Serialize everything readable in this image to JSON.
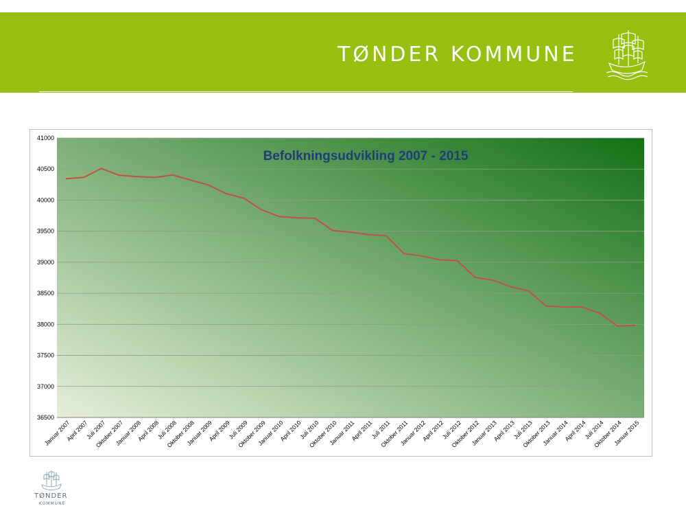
{
  "header": {
    "brand": "TØNDER KOMMUNE"
  },
  "footer": {
    "brand": "TØNDER",
    "sub": "KOMMUNE"
  },
  "colors": {
    "banner": "#97bf0f",
    "line": "#c0504d",
    "title": "#1f3d7a",
    "gradient_light": "#e6efd9",
    "gradient_dark": "#137015"
  },
  "chart_data": {
    "type": "line",
    "title": "Befolkningsudvikling 2007 - 2015",
    "xlabel": "",
    "ylabel": "",
    "ylim": [
      36500,
      41000
    ],
    "yticks": [
      36500,
      37000,
      37500,
      38000,
      38500,
      39000,
      39500,
      40000,
      40500,
      41000
    ],
    "grid": true,
    "categories": [
      "Januar 2007",
      "April 2007",
      "Juli 2007",
      "Oktober 2007",
      "Januar 2008",
      "April 2008",
      "Juli 2008",
      "Oktober 2008",
      "Januar 2009",
      "April 2009",
      "Juli 2009",
      "Oktober 2009",
      "Januar 2010",
      "April 2010",
      "Juli 2010",
      "Oktober 2010",
      "Januar 2011",
      "April 2011",
      "Juli 2011",
      "Oktober 2011",
      "Januar 2012",
      "April 2012",
      "Juli 2012",
      "Oktober 2012",
      "Januar 2013",
      "April 2013",
      "Juli 2013",
      "Oktober 2013",
      "Januar 2014",
      "April 2014",
      "Juli 2014",
      "Oktober 2014",
      "Januar 2015"
    ],
    "series": [
      {
        "values": [
          40345,
          40365,
          40510,
          40400,
          40380,
          40365,
          40405,
          40325,
          40245,
          40105,
          40030,
          39845,
          39735,
          39715,
          39710,
          39510,
          39485,
          39445,
          39425,
          39140,
          39100,
          39040,
          39025,
          38755,
          38710,
          38605,
          38540,
          38295,
          38280,
          38280,
          38180,
          37970,
          37985
        ]
      }
    ]
  }
}
